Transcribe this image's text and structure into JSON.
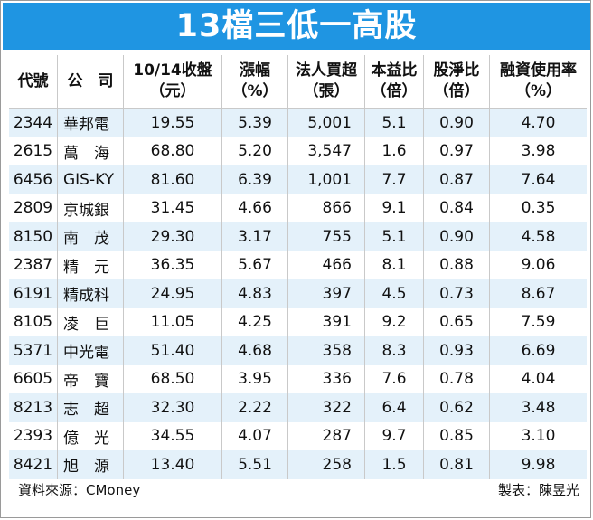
{
  "title": "13檔三低一高股",
  "headers": {
    "code": [
      "代號",
      ""
    ],
    "name": [
      "公　司",
      ""
    ],
    "price": [
      "10/14收盤",
      "（元）"
    ],
    "change": [
      "漲幅",
      "（%）"
    ],
    "inst_buy": [
      "法人買超",
      "（張）"
    ],
    "pe": [
      "本益比",
      "（倍）"
    ],
    "pb": [
      "股淨比",
      "（倍）"
    ],
    "margin": [
      "融資使用率",
      "（%）"
    ]
  },
  "rows": [
    {
      "code": "2344",
      "name": "華邦電",
      "price": "19.55",
      "change": "5.39",
      "inst_buy": "5,001",
      "pe": "5.1",
      "pb": "0.90",
      "margin": "4.70"
    },
    {
      "code": "2615",
      "name": "萬　海",
      "price": "68.80",
      "change": "5.20",
      "inst_buy": "3,547",
      "pe": "1.6",
      "pb": "0.97",
      "margin": "3.98"
    },
    {
      "code": "6456",
      "name": "GIS-KY",
      "price": "81.60",
      "change": "6.39",
      "inst_buy": "1,001",
      "pe": "7.7",
      "pb": "0.87",
      "margin": "7.64"
    },
    {
      "code": "2809",
      "name": "京城銀",
      "price": "31.45",
      "change": "4.66",
      "inst_buy": "866",
      "pe": "9.1",
      "pb": "0.84",
      "margin": "0.35"
    },
    {
      "code": "8150",
      "name": "南　茂",
      "price": "29.30",
      "change": "3.17",
      "inst_buy": "755",
      "pe": "5.1",
      "pb": "0.90",
      "margin": "4.58"
    },
    {
      "code": "2387",
      "name": "精　元",
      "price": "36.35",
      "change": "5.67",
      "inst_buy": "466",
      "pe": "8.1",
      "pb": "0.88",
      "margin": "9.06"
    },
    {
      "code": "6191",
      "name": "精成科",
      "price": "24.95",
      "change": "4.83",
      "inst_buy": "397",
      "pe": "4.5",
      "pb": "0.73",
      "margin": "8.67"
    },
    {
      "code": "8105",
      "name": "凌　巨",
      "price": "11.05",
      "change": "4.25",
      "inst_buy": "391",
      "pe": "9.2",
      "pb": "0.65",
      "margin": "7.59"
    },
    {
      "code": "5371",
      "name": "中光電",
      "price": "51.40",
      "change": "4.68",
      "inst_buy": "358",
      "pe": "8.3",
      "pb": "0.93",
      "margin": "6.69"
    },
    {
      "code": "6605",
      "name": "帝　寶",
      "price": "68.50",
      "change": "3.95",
      "inst_buy": "336",
      "pe": "7.6",
      "pb": "0.78",
      "margin": "4.04"
    },
    {
      "code": "8213",
      "name": "志　超",
      "price": "32.30",
      "change": "2.22",
      "inst_buy": "322",
      "pe": "6.4",
      "pb": "0.62",
      "margin": "3.48"
    },
    {
      "code": "2393",
      "name": "億　光",
      "price": "34.55",
      "change": "4.07",
      "inst_buy": "287",
      "pe": "9.7",
      "pb": "0.85",
      "margin": "3.10"
    },
    {
      "code": "8421",
      "name": "旭　源",
      "price": "13.40",
      "change": "5.51",
      "inst_buy": "258",
      "pe": "1.5",
      "pb": "0.81",
      "margin": "9.98"
    }
  ],
  "footer": {
    "source": "資料來源：CMoney",
    "credit": "製表：陳昱光"
  },
  "colors": {
    "title_bg": "#1f95e2",
    "row_stripe": "#e4f1fa"
  }
}
